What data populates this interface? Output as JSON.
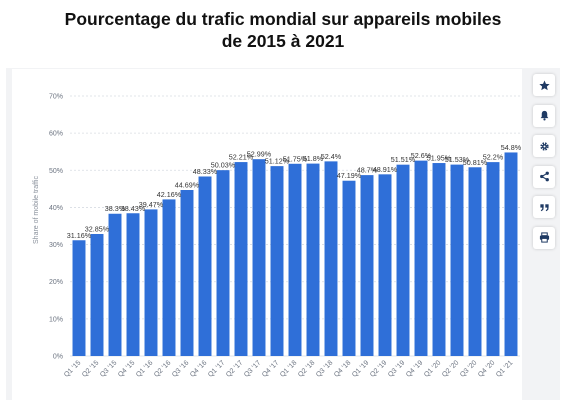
{
  "title": {
    "line1": "Pourcentage du trafic mondial sur appareils mobiles",
    "line2": "de 2015 à 2021"
  },
  "toolbar": {
    "items": [
      {
        "icon": "star-icon"
      },
      {
        "icon": "bell-icon"
      },
      {
        "icon": "gear-icon"
      },
      {
        "icon": "share-icon"
      },
      {
        "icon": "quote-icon"
      },
      {
        "icon": "print-icon"
      }
    ]
  },
  "colors": {
    "bar": "#2f6fd8",
    "grid": "#d8dce2",
    "axis_text": "#6b7380",
    "label_text": "#333333"
  },
  "chart_data": {
    "type": "bar",
    "title": "",
    "xlabel": "",
    "ylabel": "Share of mobile traffic",
    "ylim": [
      0,
      70
    ],
    "yticks": [
      0,
      10,
      20,
      30,
      40,
      50,
      60,
      70
    ],
    "ytick_labels": [
      "0%",
      "10%",
      "20%",
      "30%",
      "40%",
      "50%",
      "60%",
      "70%"
    ],
    "grid": true,
    "categories": [
      "Q1 '15",
      "Q2 '15",
      "Q3 '15",
      "Q4 '15",
      "Q1 '16",
      "Q2 '16",
      "Q3 '16",
      "Q4 '16",
      "Q1 '17",
      "Q2 '17",
      "Q3 '17",
      "Q4 '17",
      "Q1 '18",
      "Q2 '18",
      "Q3 '18",
      "Q4 '18",
      "Q1 '19",
      "Q2 '19",
      "Q3 '19",
      "Q4 '19",
      "Q1 '20",
      "Q2 '20",
      "Q3 '20",
      "Q4 '20",
      "Q1 '21"
    ],
    "values": [
      31.16,
      32.85,
      38.3,
      38.43,
      39.47,
      42.16,
      44.69,
      48.33,
      50.03,
      52.21,
      52.99,
      51.12,
      51.75,
      51.8,
      52.4,
      47.19,
      48.7,
      48.91,
      51.51,
      52.6,
      51.95,
      51.53,
      50.81,
      52.2,
      54.8
    ],
    "data_labels": [
      "31.16%",
      "32.85%",
      "38.3%",
      "38.43%",
      "39.47%",
      "42.16%",
      "44.69%",
      "48.33%",
      "50.03%",
      "52.21%",
      "52.99%",
      "51.12%",
      "51.75%",
      "51.8%",
      "52.4%",
      "47.19%",
      "48.7%",
      "48.91%",
      "51.51%",
      "52.6%",
      "51.95%",
      "51.53%",
      "50.81%",
      "52.2%",
      "54.8%"
    ]
  }
}
